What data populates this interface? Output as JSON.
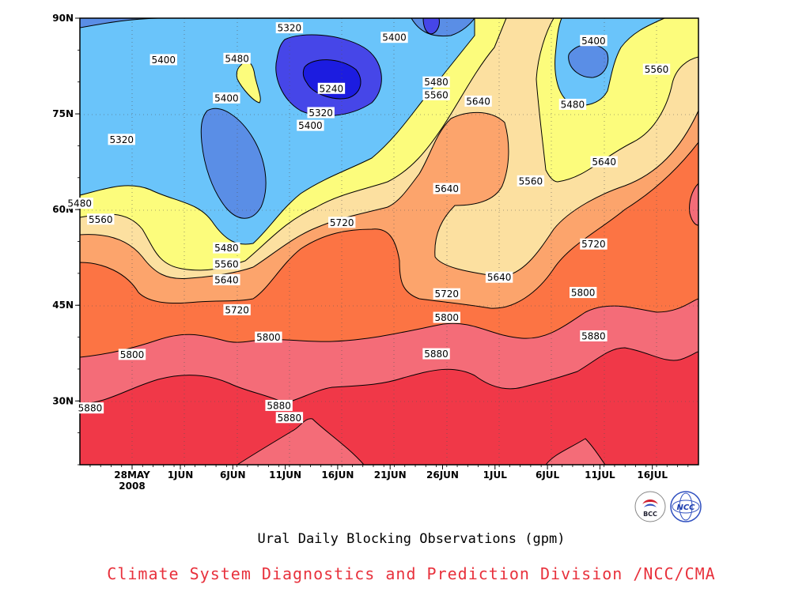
{
  "chart_data": {
    "type": "heatmap",
    "title": "Ural Daily Blocking Observations (gpm)",
    "xlabel": "",
    "ylabel": "",
    "x_ticks": [
      "28MAY",
      "1JUN",
      "6JUN",
      "11JUN",
      "16JUN",
      "21JUN",
      "26JUN",
      "1JUL",
      "6JUL",
      "11JUL",
      "16JUL"
    ],
    "x_tick_sub": "2008",
    "y_ticks": [
      "90N",
      "75N",
      "60N",
      "45N",
      "30N"
    ],
    "ylim_deg": [
      20,
      90
    ],
    "grid": true,
    "contour_levels": [
      5240,
      5320,
      5400,
      5480,
      5560,
      5640,
      5720,
      5800,
      5880
    ],
    "fill_colors": [
      "#1c1ce0",
      "#4646e8",
      "#5a8ee6",
      "#6ac4fa",
      "#fcfc7c",
      "#fce0a0",
      "#fca46c",
      "#fc7444",
      "#f46c78",
      "#f03848"
    ],
    "contour_labels": [
      {
        "value": 5320,
        "date": "2008-06-12",
        "lat": 88.5
      },
      {
        "value": 5400,
        "date": "2008-06-22",
        "lat": 87.0
      },
      {
        "value": 5400,
        "date": "2008-07-11",
        "lat": 86.5
      },
      {
        "value": 5400,
        "date": "2008-05-31",
        "lat": 83.5
      },
      {
        "value": 5480,
        "date": "2008-06-07",
        "lat": 83.7
      },
      {
        "value": 5560,
        "date": "2008-07-17",
        "lat": 82.0
      },
      {
        "value": 5480,
        "date": "2008-06-26",
        "lat": 80.0
      },
      {
        "value": 5240,
        "date": "2008-06-16",
        "lat": 79.0
      },
      {
        "value": 5560,
        "date": "2008-06-26",
        "lat": 78.0
      },
      {
        "value": 5400,
        "date": "2008-06-06",
        "lat": 77.5
      },
      {
        "value": 5640,
        "date": "2008-06-30",
        "lat": 77.0
      },
      {
        "value": 5480,
        "date": "2008-07-09",
        "lat": 76.5
      },
      {
        "value": 5320,
        "date": "2008-06-15",
        "lat": 75.2
      },
      {
        "value": 5400,
        "date": "2008-06-14",
        "lat": 73.2
      },
      {
        "value": 5320,
        "date": "2008-05-27",
        "lat": 71.0
      },
      {
        "value": 5640,
        "date": "2008-07-12",
        "lat": 67.5
      },
      {
        "value": 5560,
        "date": "2008-07-05",
        "lat": 64.5
      },
      {
        "value": 5640,
        "date": "2008-06-27",
        "lat": 63.3
      },
      {
        "value": 5480,
        "date": "2008-05-23",
        "lat": 61.0
      },
      {
        "value": 5560,
        "date": "2008-05-25",
        "lat": 58.5
      },
      {
        "value": 5720,
        "date": "2008-06-17",
        "lat": 58.0
      },
      {
        "value": 5720,
        "date": "2008-07-11",
        "lat": 54.6
      },
      {
        "value": 5480,
        "date": "2008-06-06",
        "lat": 54.0
      },
      {
        "value": 5560,
        "date": "2008-06-06",
        "lat": 51.5
      },
      {
        "value": 5640,
        "date": "2008-06-06",
        "lat": 49.0
      },
      {
        "value": 5640,
        "date": "2008-07-02",
        "lat": 49.4
      },
      {
        "value": 5720,
        "date": "2008-06-27",
        "lat": 46.8
      },
      {
        "value": 5800,
        "date": "2008-07-10",
        "lat": 47.0
      },
      {
        "value": 5720,
        "date": "2008-06-07",
        "lat": 44.3
      },
      {
        "value": 5800,
        "date": "2008-06-27",
        "lat": 43.1
      },
      {
        "value": 5800,
        "date": "2008-06-10",
        "lat": 40.0
      },
      {
        "value": 5880,
        "date": "2008-07-11",
        "lat": 40.2
      },
      {
        "value": 5880,
        "date": "2008-06-26",
        "lat": 37.4
      },
      {
        "value": 5800,
        "date": "2008-05-28",
        "lat": 37.3
      },
      {
        "value": 5880,
        "date": "2008-05-24",
        "lat": 28.9
      },
      {
        "value": 5880,
        "date": "2008-06-11",
        "lat": 29.3
      },
      {
        "value": 5880,
        "date": "2008-06-12",
        "lat": 27.4
      }
    ]
  },
  "footer": {
    "title": "Ural Daily Blocking Observations (gpm)",
    "credit": "Climate System Diagnostics and Prediction Division /NCC/CMA",
    "credit_color": "#e8313c",
    "logo_left": "BCC",
    "logo_right": "NCC"
  }
}
